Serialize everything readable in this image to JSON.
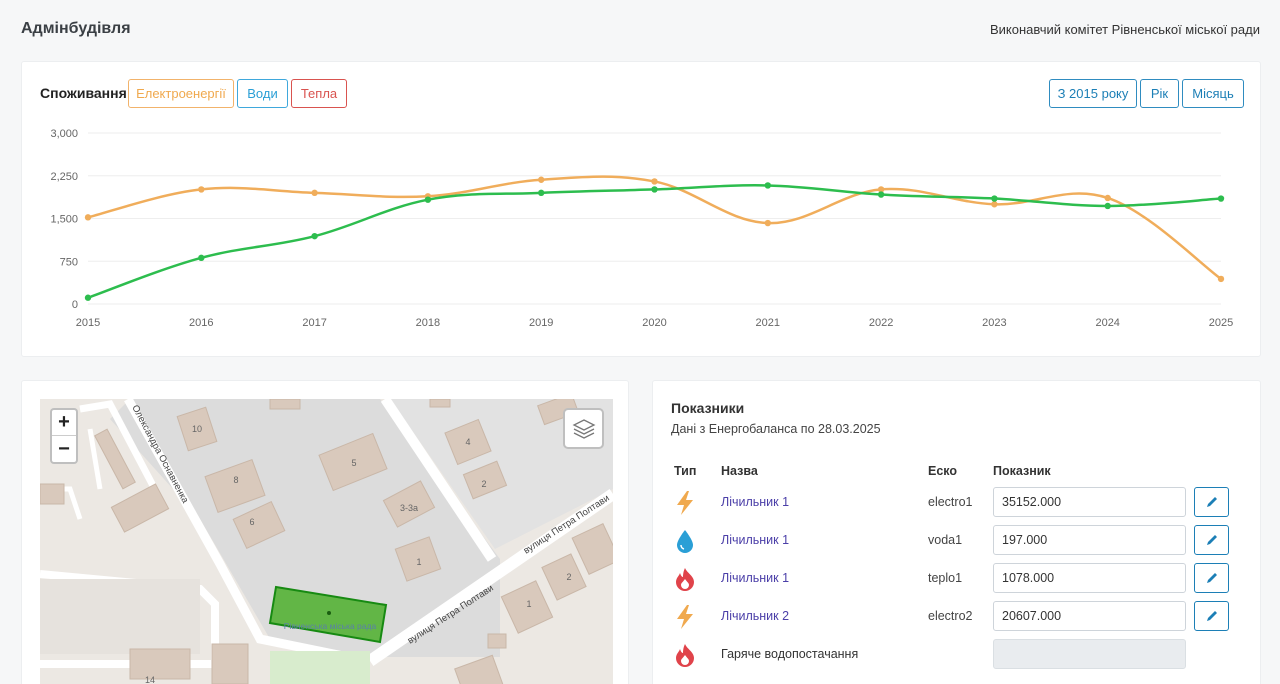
{
  "header": {
    "title": "Адмінбудівля",
    "organization": "Виконавчий комітет Рівненської міської ради"
  },
  "consumption": {
    "title": "Споживання",
    "type_buttons": {
      "electro": "Електроенергії",
      "water": "Води",
      "heat": "Тепла"
    },
    "period_buttons": {
      "since": "З 2015 року",
      "year": "Рік",
      "month": "Місяць"
    },
    "colors": {
      "electro": "#f0ad5b",
      "green": "#2dbd4e"
    }
  },
  "chart_data": {
    "type": "line",
    "x": [
      "2015",
      "2016",
      "2017",
      "2018",
      "2019",
      "2020",
      "2021",
      "2022",
      "2023",
      "2024",
      "2025"
    ],
    "y_ticks": [
      "3,000",
      "2,250",
      "1,500",
      "750",
      "0"
    ],
    "ylim": [
      0,
      3000
    ],
    "grid": true,
    "series": [
      {
        "color": "#f0ad5b",
        "values": [
          1520,
          2010,
          1950,
          1890,
          2180,
          2150,
          1420,
          2010,
          1750,
          1860,
          440
        ]
      },
      {
        "color": "#2dbd4e",
        "values": [
          110,
          810,
          1190,
          1830,
          1950,
          2010,
          2080,
          1920,
          1850,
          1720,
          1850
        ]
      }
    ]
  },
  "map": {
    "zoom_in": "+",
    "zoom_out": "−",
    "labels": {
      "street_top": "Олександра Оснавненка",
      "street_poltavy": "вулиця Петра Полтави",
      "street_poltavy2": "вулиця Петра Полтави",
      "building_name": "Рівненська міська рада",
      "b10": "10",
      "b8": "8",
      "b6": "6",
      "b5": "5",
      "b4": "4",
      "b2a": "2",
      "b33a": "3-3а",
      "b1a": "1",
      "b1b": "1",
      "b2b": "2",
      "b14": "14"
    }
  },
  "indicators": {
    "title": "Показники",
    "subtitle": "Дані з Енергобаланса по 28.03.2025",
    "headers": {
      "type": "Тип",
      "name": "Назва",
      "esco": "Еско",
      "value": "Показник"
    },
    "rows": [
      {
        "icon": "lightning-icon",
        "name": "Лічильник 1",
        "esco": "electro1",
        "value": "35152.000"
      },
      {
        "icon": "water-drop-icon",
        "name": "Лічильник 1",
        "esco": "voda1",
        "value": "197.000"
      },
      {
        "icon": "flame-icon",
        "name": "Лічильник 1",
        "esco": "teplo1",
        "value": "1078.000"
      },
      {
        "icon": "lightning-icon",
        "name": "Лічильник 2",
        "esco": "electro2",
        "value": "20607.000"
      },
      {
        "icon": "flame-icon",
        "name": "Гаряче водопостачання",
        "esco": "",
        "value": ""
      }
    ]
  }
}
